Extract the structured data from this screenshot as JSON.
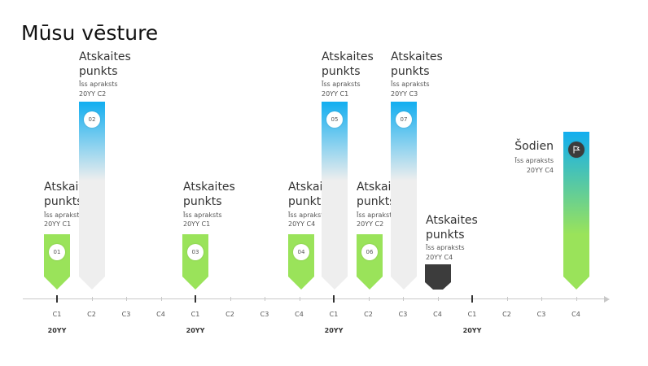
{
  "title": "Mūsu vēsture",
  "colors": {
    "green": "#9ae35a",
    "blue_top": "#12aef0",
    "gray": "#eeeeee",
    "dark": "#3c3c3c"
  },
  "markers": [
    {
      "badge": "01",
      "title": "Atskaites punkts",
      "desc": "Īss apraksts",
      "date": "20YY  C1",
      "style": "green"
    },
    {
      "badge": "02",
      "title": "Atskaites punkts",
      "desc": "Īss apraksts",
      "date": "20YY  C2",
      "style": "blue"
    },
    {
      "badge": "03",
      "title": "Atskaites punkts",
      "desc": "Īss apraksts",
      "date": "20YY  C1",
      "style": "green"
    },
    {
      "badge": "04",
      "title": "Atskaites punkts",
      "desc": "Īss apraksts",
      "date": "20YY  C4",
      "style": "green"
    },
    {
      "badge": "05",
      "title": "Atskaites punkts",
      "desc": "Īss apraksts",
      "date": "20YY  C1",
      "style": "blue"
    },
    {
      "badge": "06",
      "title": "Atskaites punkts",
      "desc": "Īss apraksts",
      "date": "20YY  C2",
      "style": "green"
    },
    {
      "badge": "07",
      "title": "Atskaites punkts",
      "desc": "Īss apraksts",
      "date": "20YY  C3",
      "style": "blue"
    },
    {
      "badge": "",
      "title": "Atskaites punkts",
      "desc": "Īss apraksts",
      "date": "20YY  C4",
      "style": "dark"
    },
    {
      "badge": "",
      "icon": "flag-icon",
      "title": "Šodien",
      "desc": "Īss apraksts",
      "date": "20YY  C4",
      "style": "today"
    }
  ],
  "axis": {
    "quarters": [
      "C1",
      "C2",
      "C3",
      "C4",
      "C1",
      "C2",
      "C3",
      "C4",
      "C1",
      "C2",
      "C3",
      "C4",
      "C1",
      "C2",
      "C3",
      "C4"
    ],
    "years": [
      "20YY",
      "20YY",
      "20YY",
      "20YY"
    ]
  }
}
